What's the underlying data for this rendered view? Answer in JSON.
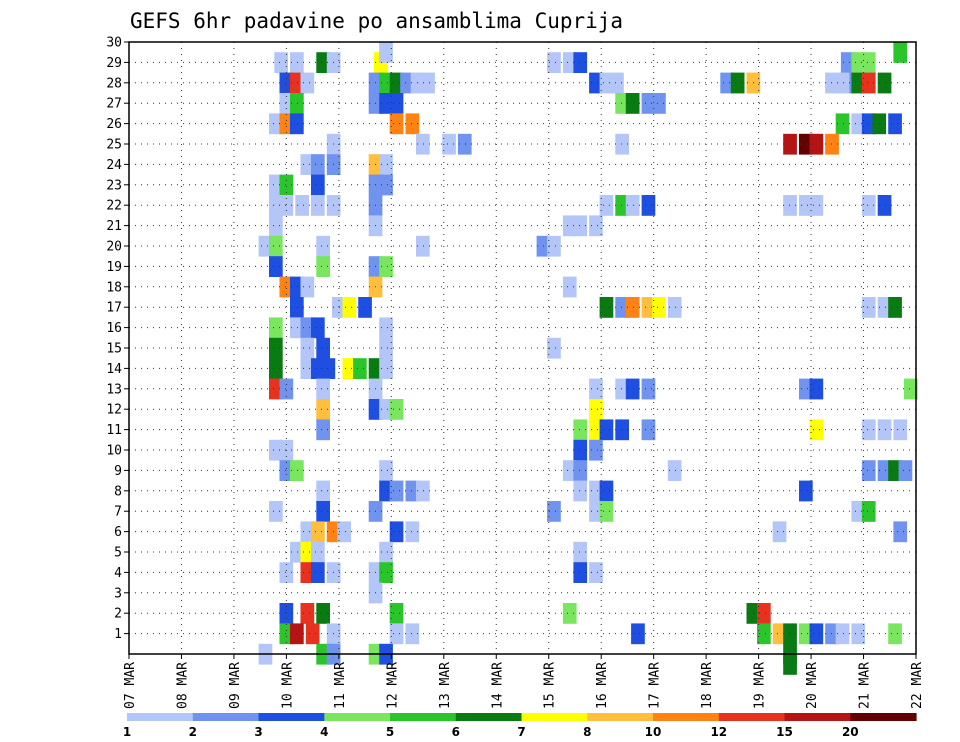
{
  "chart_data": {
    "type": "heatmap",
    "title": "GEFS 6hr padavine po ansamblima Cuprija",
    "x_ticks": [
      "07 MAR",
      "08 MAR",
      "09 MAR",
      "10 MAR",
      "11 MAR",
      "12 MAR",
      "13 MAR",
      "14 MAR",
      "15 MAR",
      "16 MAR",
      "17 MAR",
      "18 MAR",
      "19 MAR",
      "20 MAR",
      "21 MAR",
      "22 MAR"
    ],
    "y_ticks": [
      "1",
      "2",
      "3",
      "4",
      "5",
      "6",
      "7",
      "8",
      "9",
      "10",
      "11",
      "12",
      "13",
      "14",
      "15",
      "16",
      "17",
      "18",
      "19",
      "20",
      "21",
      "22",
      "23",
      "24",
      "25",
      "26",
      "27",
      "28",
      "29",
      "30"
    ],
    "ylim": [
      0,
      30
    ],
    "grid": true,
    "colorbar": {
      "labels": [
        "1",
        "2",
        "3",
        "4",
        "5",
        "6",
        "7",
        "8",
        "10",
        "12",
        "15",
        "20"
      ],
      "colors": [
        "#b3c6f7",
        "#6f93ee",
        "#1f4fe0",
        "#7ae65f",
        "#2ac52a",
        "#0a7a12",
        "#ffff00",
        "#ffbe3c",
        "#ff8212",
        "#e6321e",
        "#b41414",
        "#640000"
      ]
    },
    "cells": [
      [
        9.9,
        29,
        0
      ],
      [
        10.2,
        29,
        0
      ],
      [
        10.7,
        29,
        5
      ],
      [
        10.9,
        29,
        0
      ],
      [
        11.8,
        29,
        6
      ],
      [
        15.1,
        29,
        0
      ],
      [
        15.4,
        29,
        0
      ],
      [
        15.6,
        29,
        2
      ],
      [
        20.7,
        29,
        1
      ],
      [
        20.9,
        29,
        3
      ],
      [
        21.1,
        29,
        3
      ],
      [
        10.0,
        28,
        2
      ],
      [
        10.2,
        28,
        9
      ],
      [
        10.4,
        28,
        0
      ],
      [
        11.7,
        28,
        1
      ],
      [
        11.9,
        28,
        4
      ],
      [
        12.1,
        28,
        5
      ],
      [
        12.3,
        28,
        1
      ],
      [
        12.5,
        28,
        0
      ],
      [
        12.7,
        28,
        0
      ],
      [
        15.9,
        28,
        2
      ],
      [
        16.1,
        28,
        0
      ],
      [
        16.3,
        28,
        0
      ],
      [
        18.4,
        28,
        1
      ],
      [
        18.6,
        28,
        5
      ],
      [
        18.9,
        28,
        7
      ],
      [
        20.7,
        28,
        1
      ],
      [
        20.4,
        28,
        0
      ],
      [
        20.6,
        28,
        0
      ],
      [
        20.9,
        28,
        0
      ],
      [
        21.1,
        28,
        0
      ],
      [
        20.9,
        28,
        5
      ],
      [
        21.1,
        28,
        9
      ],
      [
        21.4,
        28,
        5
      ],
      [
        10.0,
        27,
        0
      ],
      [
        10.2,
        27,
        4
      ],
      [
        11.7,
        27,
        1
      ],
      [
        11.9,
        27,
        2
      ],
      [
        12.1,
        27,
        2
      ],
      [
        16.4,
        27,
        3
      ],
      [
        16.6,
        27,
        5
      ],
      [
        16.9,
        27,
        1
      ],
      [
        17.1,
        27,
        1
      ],
      [
        9.8,
        26,
        0
      ],
      [
        10.0,
        26,
        8
      ],
      [
        10.2,
        26,
        2
      ],
      [
        12.1,
        26,
        8
      ],
      [
        12.4,
        26,
        8
      ],
      [
        20.6,
        26,
        4
      ],
      [
        20.9,
        26,
        0
      ],
      [
        21.1,
        26,
        2
      ],
      [
        21.3,
        26,
        5
      ],
      [
        21.6,
        26,
        2
      ],
      [
        10.9,
        25,
        0
      ],
      [
        12.6,
        25,
        0
      ],
      [
        13.1,
        25,
        0
      ],
      [
        13.4,
        25,
        1
      ],
      [
        16.4,
        25,
        0
      ],
      [
        19.6,
        25,
        10
      ],
      [
        19.9,
        25,
        11
      ],
      [
        20.1,
        25,
        10
      ],
      [
        20.4,
        25,
        8
      ],
      [
        10.4,
        24,
        0
      ],
      [
        10.6,
        24,
        1
      ],
      [
        10.9,
        24,
        1
      ],
      [
        11.7,
        24,
        7
      ],
      [
        11.9,
        24,
        0
      ],
      [
        9.8,
        23,
        0
      ],
      [
        10.0,
        23,
        4
      ],
      [
        10.6,
        23,
        2
      ],
      [
        11.7,
        23,
        1
      ],
      [
        11.9,
        23,
        1
      ],
      [
        9.8,
        22,
        0
      ],
      [
        10.0,
        22,
        0
      ],
      [
        10.3,
        22,
        0
      ],
      [
        10.6,
        22,
        0
      ],
      [
        10.9,
        22,
        0
      ],
      [
        11.7,
        22,
        1
      ],
      [
        16.1,
        22,
        0
      ],
      [
        16.4,
        22,
        4
      ],
      [
        16.6,
        22,
        0
      ],
      [
        16.9,
        22,
        2
      ],
      [
        19.6,
        22,
        0
      ],
      [
        19.9,
        22,
        0
      ],
      [
        20.1,
        22,
        0
      ],
      [
        21.1,
        22,
        0
      ],
      [
        21.4,
        22,
        2
      ],
      [
        9.8,
        21,
        0
      ],
      [
        11.7,
        21,
        0
      ],
      [
        15.9,
        21,
        0
      ],
      [
        15.4,
        21,
        0
      ],
      [
        15.6,
        21,
        0
      ],
      [
        9.6,
        20,
        0
      ],
      [
        9.8,
        20,
        3
      ],
      [
        10.7,
        20,
        0
      ],
      [
        12.6,
        20,
        0
      ],
      [
        14.9,
        20,
        1
      ],
      [
        15.1,
        20,
        0
      ],
      [
        9.8,
        19,
        2
      ],
      [
        10.7,
        19,
        3
      ],
      [
        11.7,
        19,
        1
      ],
      [
        11.9,
        19,
        3
      ],
      [
        10.0,
        18,
        8
      ],
      [
        10.2,
        18,
        2
      ],
      [
        10.4,
        18,
        0
      ],
      [
        11.7,
        18,
        7
      ],
      [
        15.4,
        18,
        0
      ],
      [
        10.2,
        17,
        2
      ],
      [
        11.0,
        17,
        0
      ],
      [
        11.2,
        17,
        6
      ],
      [
        11.5,
        17,
        2
      ],
      [
        16.1,
        17,
        5
      ],
      [
        16.4,
        17,
        1
      ],
      [
        16.6,
        17,
        8
      ],
      [
        16.9,
        17,
        7
      ],
      [
        17.1,
        17,
        6
      ],
      [
        17.4,
        17,
        0
      ],
      [
        21.1,
        17,
        0
      ],
      [
        21.4,
        17,
        0
      ],
      [
        21.6,
        17,
        5
      ],
      [
        9.8,
        16,
        3
      ],
      [
        10.2,
        16,
        0
      ],
      [
        10.4,
        16,
        1
      ],
      [
        10.6,
        16,
        2
      ],
      [
        11.9,
        16,
        0
      ],
      [
        9.8,
        15,
        5
      ],
      [
        10.4,
        15,
        0
      ],
      [
        10.7,
        15,
        2
      ],
      [
        11.9,
        15,
        0
      ],
      [
        15.1,
        15,
        0
      ],
      [
        9.8,
        14,
        5
      ],
      [
        10.4,
        14,
        0
      ],
      [
        10.6,
        14,
        2
      ],
      [
        10.8,
        14,
        2
      ],
      [
        11.2,
        14,
        6
      ],
      [
        11.4,
        14,
        4
      ],
      [
        11.7,
        14,
        5
      ],
      [
        11.9,
        14,
        0
      ],
      [
        9.8,
        13,
        9
      ],
      [
        10.0,
        13,
        1
      ],
      [
        10.7,
        13,
        0
      ],
      [
        11.7,
        13,
        0
      ],
      [
        15.9,
        13,
        0
      ],
      [
        16.4,
        13,
        0
      ],
      [
        16.6,
        13,
        2
      ],
      [
        16.9,
        13,
        1
      ],
      [
        19.9,
        13,
        1
      ],
      [
        20.1,
        13,
        2
      ],
      [
        21.9,
        13,
        3
      ],
      [
        10.7,
        12,
        7
      ],
      [
        11.7,
        12,
        2
      ],
      [
        11.9,
        12,
        0
      ],
      [
        12.1,
        12,
        3
      ],
      [
        15.9,
        12,
        6
      ],
      [
        10.7,
        11,
        1
      ],
      [
        15.6,
        11,
        3
      ],
      [
        15.9,
        11,
        6
      ],
      [
        16.1,
        11,
        2
      ],
      [
        16.4,
        11,
        2
      ],
      [
        16.9,
        11,
        1
      ],
      [
        20.1,
        11,
        6
      ],
      [
        21.1,
        11,
        0
      ],
      [
        21.4,
        11,
        0
      ],
      [
        21.7,
        11,
        0
      ],
      [
        9.8,
        10,
        0
      ],
      [
        10.0,
        10,
        0
      ],
      [
        15.6,
        10,
        2
      ],
      [
        15.9,
        10,
        1
      ],
      [
        10.0,
        9,
        1
      ],
      [
        10.2,
        9,
        3
      ],
      [
        11.9,
        9,
        0
      ],
      [
        15.4,
        9,
        0
      ],
      [
        15.6,
        9,
        1
      ],
      [
        17.4,
        9,
        0
      ],
      [
        21.1,
        9,
        1
      ],
      [
        21.4,
        9,
        1
      ],
      [
        21.6,
        9,
        5
      ],
      [
        21.8,
        9,
        1
      ],
      [
        10.7,
        8,
        0
      ],
      [
        11.9,
        8,
        2
      ],
      [
        12.1,
        8,
        1
      ],
      [
        12.4,
        8,
        1
      ],
      [
        12.6,
        8,
        0
      ],
      [
        15.6,
        8,
        0
      ],
      [
        15.9,
        8,
        0
      ],
      [
        16.1,
        8,
        2
      ],
      [
        19.9,
        8,
        2
      ],
      [
        9.8,
        7,
        0
      ],
      [
        10.7,
        7,
        2
      ],
      [
        11.7,
        7,
        1
      ],
      [
        15.1,
        7,
        1
      ],
      [
        15.9,
        7,
        0
      ],
      [
        16.1,
        7,
        3
      ],
      [
        20.9,
        7,
        0
      ],
      [
        21.1,
        7,
        4
      ],
      [
        10.4,
        6,
        0
      ],
      [
        10.6,
        6,
        7
      ],
      [
        10.9,
        6,
        8
      ],
      [
        11.1,
        6,
        0
      ],
      [
        12.1,
        6,
        2
      ],
      [
        12.4,
        6,
        0
      ],
      [
        19.4,
        6,
        0
      ],
      [
        21.7,
        6,
        1
      ],
      [
        10.2,
        5,
        0
      ],
      [
        10.4,
        5,
        6
      ],
      [
        10.6,
        5,
        0
      ],
      [
        11.9,
        5,
        0
      ],
      [
        15.6,
        5,
        0
      ],
      [
        10.0,
        4,
        0
      ],
      [
        10.4,
        4,
        9
      ],
      [
        10.6,
        4,
        2
      ],
      [
        10.9,
        4,
        0
      ],
      [
        11.7,
        4,
        0
      ],
      [
        11.9,
        4,
        4
      ],
      [
        15.6,
        4,
        2
      ],
      [
        15.9,
        4,
        0
      ],
      [
        11.7,
        3,
        0
      ],
      [
        10.0,
        2,
        2
      ],
      [
        10.4,
        2,
        9
      ],
      [
        10.7,
        2,
        5
      ],
      [
        12.1,
        2,
        4
      ],
      [
        15.4,
        2,
        3
      ],
      [
        18.9,
        2,
        5
      ],
      [
        19.1,
        2,
        9
      ],
      [
        10.0,
        1,
        4
      ],
      [
        10.2,
        1,
        10
      ],
      [
        10.5,
        1,
        9
      ],
      [
        10.9,
        1,
        0
      ],
      [
        12.1,
        1,
        0
      ],
      [
        12.4,
        1,
        0
      ],
      [
        16.7,
        1,
        2
      ],
      [
        19.1,
        1,
        4
      ],
      [
        19.4,
        1,
        7
      ],
      [
        19.6,
        1,
        5
      ],
      [
        19.9,
        1,
        3
      ],
      [
        20.1,
        1,
        2
      ],
      [
        20.4,
        1,
        1
      ],
      [
        20.6,
        1,
        0
      ],
      [
        20.9,
        1,
        0
      ],
      [
        21.6,
        1,
        3
      ],
      [
        9.6,
        0,
        0
      ],
      [
        10.7,
        0,
        4
      ],
      [
        10.9,
        0,
        1
      ],
      [
        11.7,
        0,
        3
      ],
      [
        11.9,
        0,
        2
      ],
      [
        19.6,
        0,
        5
      ],
      [
        19.6,
        -0.5,
        5
      ],
      [
        11.9,
        30,
        0
      ],
      [
        21.7,
        30,
        4
      ]
    ]
  }
}
